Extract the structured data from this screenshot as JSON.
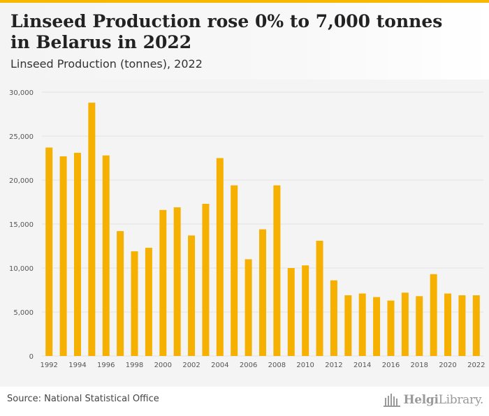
{
  "header": {
    "title": "Linseed Production rose 0% to 7,000 tonnes in Belarus in 2022",
    "subtitle": "Linseed Production (tonnes), 2022"
  },
  "footer": {
    "source": "Source: National Statistical Office",
    "brand_bold": "Helgi",
    "brand_rest": "Library."
  },
  "colors": {
    "bar": "#f6b000",
    "accent": "#f6b800",
    "grid": "#e2e2e2"
  },
  "chart_data": {
    "type": "bar",
    "title": "Linseed Production rose 0% to 7,000 tonnes in Belarus in 2022",
    "subtitle": "Linseed Production (tonnes), 2022",
    "xlabel": "",
    "ylabel": "",
    "ylim": [
      0,
      30000
    ],
    "yticks": [
      "0",
      "5,000",
      "10,000",
      "15,000",
      "20,000",
      "25,000",
      "30,000"
    ],
    "grid": true,
    "categories": [
      "1992",
      "1993",
      "1994",
      "1995",
      "1996",
      "1997",
      "1998",
      "1999",
      "2000",
      "2001",
      "2002",
      "2003",
      "2004",
      "2005",
      "2006",
      "2007",
      "2008",
      "2009",
      "2010",
      "2011",
      "2012",
      "2013",
      "2014",
      "2015",
      "2016",
      "2017",
      "2018",
      "2019",
      "2020",
      "2021",
      "2022"
    ],
    "xtick_labels": [
      "1992",
      "1994",
      "1996",
      "1998",
      "2000",
      "2002",
      "2004",
      "2006",
      "2008",
      "2010",
      "2012",
      "2014",
      "2016",
      "2018",
      "2020",
      "2022"
    ],
    "values": [
      23700,
      22700,
      23100,
      28800,
      22800,
      14200,
      11900,
      12300,
      16600,
      16900,
      13700,
      17300,
      22500,
      19400,
      11000,
      14400,
      19400,
      10000,
      10300,
      13100,
      8600,
      6900,
      7100,
      6700,
      6300,
      7200,
      6800,
      9300,
      7100,
      6900,
      6900
    ]
  }
}
